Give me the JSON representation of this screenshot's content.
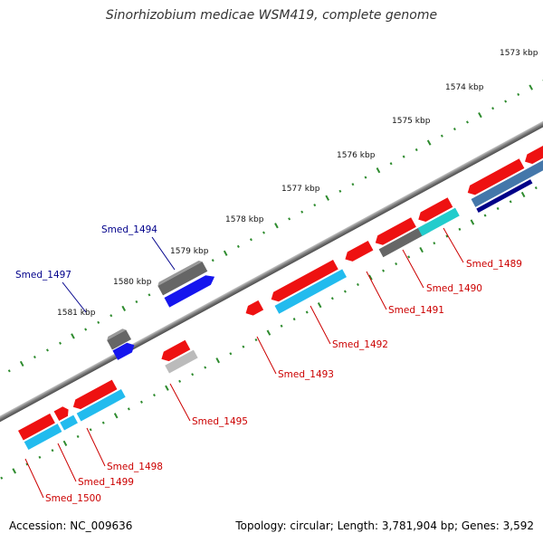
{
  "title": "Sinorhizobium medicae WSM419, complete genome",
  "footer": {
    "accession": "Accession: NC_009636",
    "summary": "Topology: circular; Length: 3,781,904 bp; Genes: 3,592"
  },
  "colors": {
    "backbone": "#8a8a8a",
    "tick": "#2e8b2e",
    "label_forward": "#00008b",
    "label_reverse": "#cc0000",
    "red": "#ee1111",
    "cyan": "#22bbee",
    "blue": "#1515ee",
    "gray": "#666666",
    "lightgray": "#bbbbbb",
    "teal": "#22cccc",
    "steel": "#4477aa",
    "navy": "#000088"
  },
  "scale_labels": [
    {
      "text": "1573 kbp",
      "kb": 1573
    },
    {
      "text": "1574 kbp",
      "kb": 1574
    },
    {
      "text": "1575 kbp",
      "kb": 1575
    },
    {
      "text": "1576 kbp",
      "kb": 1576
    },
    {
      "text": "1577 kbp",
      "kb": 1577
    },
    {
      "text": "1578 kbp",
      "kb": 1578
    },
    {
      "text": "1579 kbp",
      "kb": 1579
    },
    {
      "text": "1580 kbp",
      "kb": 1580
    },
    {
      "text": "1581 kbp",
      "kb": 1581
    }
  ],
  "labels": [
    {
      "name": "Smed_1497",
      "color": "forward"
    },
    {
      "name": "Smed_1494",
      "color": "forward"
    },
    {
      "name": "Smed_1489",
      "color": "reverse"
    },
    {
      "name": "Smed_1490",
      "color": "reverse"
    },
    {
      "name": "Smed_1491",
      "color": "reverse"
    },
    {
      "name": "Smed_1492",
      "color": "reverse"
    },
    {
      "name": "Smed_1493",
      "color": "reverse"
    },
    {
      "name": "Smed_1495",
      "color": "reverse"
    },
    {
      "name": "Smed_1498",
      "color": "reverse"
    },
    {
      "name": "Smed_1499",
      "color": "reverse"
    },
    {
      "name": "Smed_1500",
      "color": "reverse"
    }
  ]
}
